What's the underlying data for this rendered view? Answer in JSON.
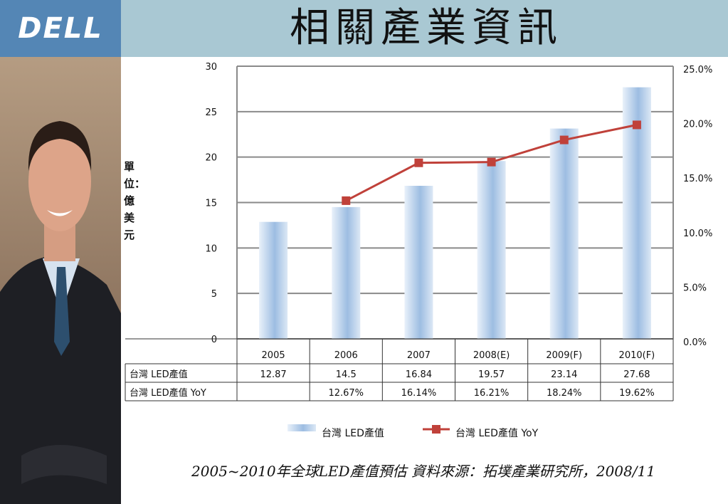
{
  "header": {
    "logo_text": "DELL",
    "title": "相關產業資訊"
  },
  "side": {
    "unit_label": "單位：億美元"
  },
  "caption": "2005~2010年全球LED產值預估 資料來源：拓墣產業研究所，2008/11",
  "colors": {
    "header_bg": "#a9c8d3",
    "logo_bg": "#5486b5",
    "bar_fill": "#b7cfea",
    "line": "#c0413a"
  },
  "chart_data": {
    "type": "bar",
    "categories": [
      "2005",
      "2006",
      "2007",
      "2008(E)",
      "2009(F)",
      "2010(F)"
    ],
    "series": [
      {
        "name": "台灣 LED產值",
        "type": "bar",
        "axis": "left",
        "values": [
          12.87,
          14.5,
          16.84,
          19.57,
          23.14,
          27.68
        ],
        "labels": [
          "12.87",
          "14.5",
          "16.84",
          "19.57",
          "23.14",
          "27.68"
        ]
      },
      {
        "name": "台灣 LED產值 YoY",
        "type": "line",
        "axis": "right",
        "values": [
          null,
          12.67,
          16.14,
          16.21,
          18.24,
          19.62
        ],
        "labels": [
          "",
          "12.67%",
          "16.14%",
          "16.21%",
          "18.24%",
          "19.62%"
        ]
      }
    ],
    "ylim": [
      0,
      30
    ],
    "yticks": [
      "0",
      "5",
      "10",
      "15",
      "20",
      "25",
      "30"
    ],
    "y2lim": [
      0,
      25
    ],
    "y2ticks": [
      "0.0%",
      "5.0%",
      "10.0%",
      "15.0%",
      "20.0%",
      "25.0%"
    ],
    "grid": true,
    "legend": "bottom",
    "data_table": true
  }
}
